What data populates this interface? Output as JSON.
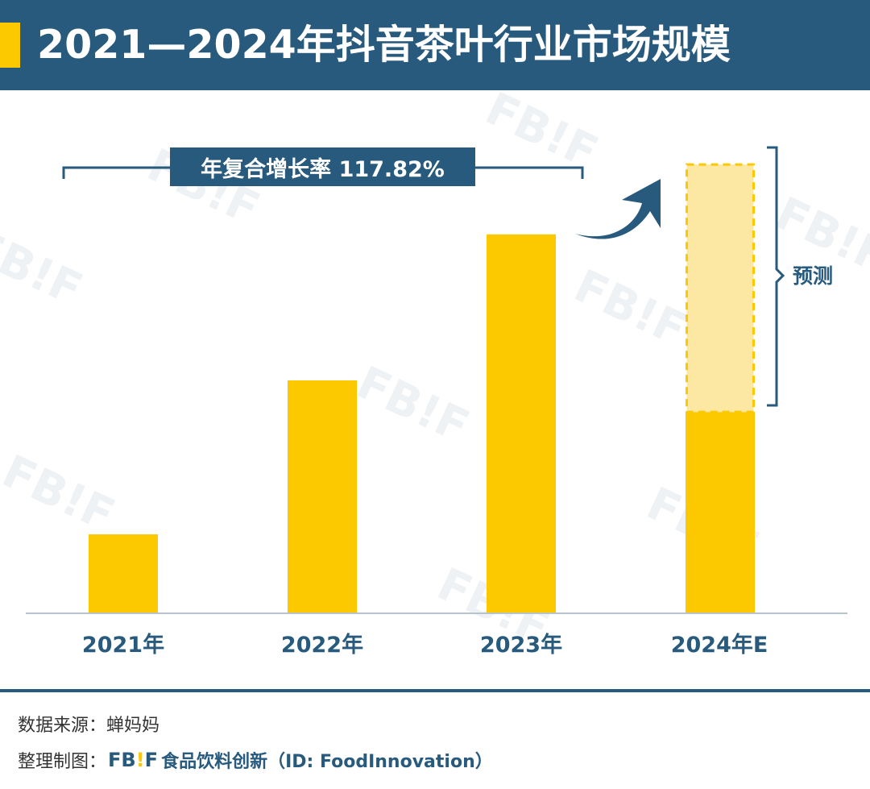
{
  "header": {
    "title": "2021—2024年抖音茶叶行业市场规模"
  },
  "annotations": {
    "cagr": "年复合增长率 117.82%",
    "forecast": "预测"
  },
  "chart_data": {
    "type": "bar",
    "categories": [
      "2021年",
      "2022年",
      "2023年",
      "2024年E"
    ],
    "series": [
      {
        "values": [
          20,
          59,
          96,
          51
        ]
      },
      {
        "values": [
          0,
          0,
          0,
          63
        ]
      }
    ],
    "stacked": true,
    "forecast_index": 3,
    "ylim": [
      0,
      118
    ],
    "grid": false,
    "colors": {
      "actual": "#fcc800",
      "forecast": "#fde8a3",
      "accent": "#285a7d"
    }
  },
  "footer": {
    "source": "数据来源：蝉妈妈",
    "credit_prefix": "整理制图：",
    "logo_fb": "FB",
    "logo_bang": "!",
    "logo_f": "F",
    "brand": "食品饮料创新（ID: FoodInnovation）"
  }
}
